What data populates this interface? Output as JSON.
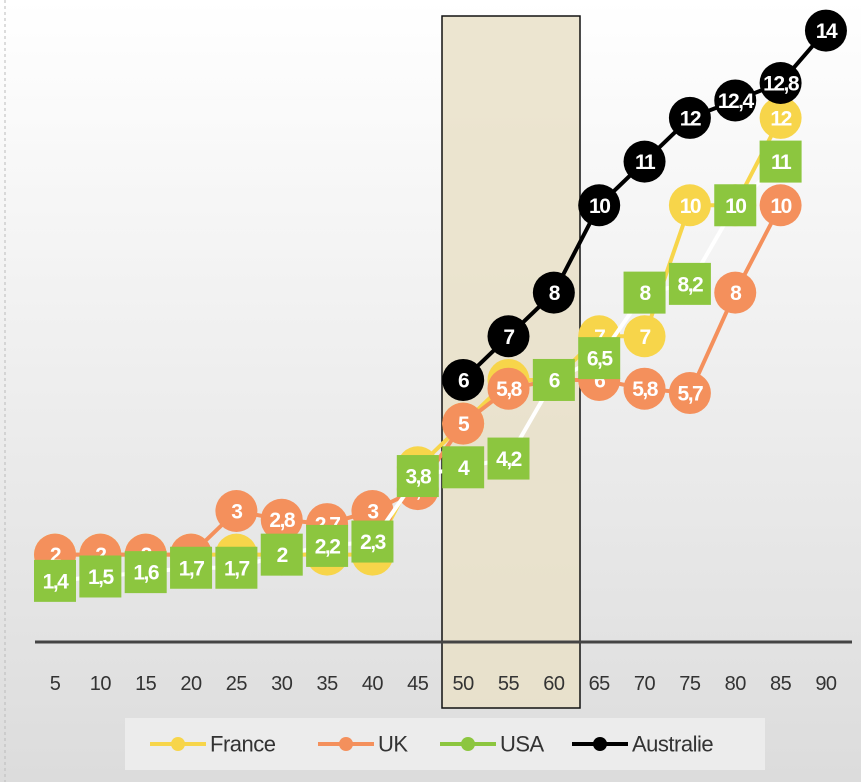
{
  "chart_data": {
    "type": "line",
    "categories": [
      "5",
      "10",
      "15",
      "20",
      "25",
      "30",
      "35",
      "40",
      "45",
      "50",
      "55",
      "60",
      "65",
      "70",
      "75",
      "80",
      "85",
      "90"
    ],
    "series": [
      {
        "name": "France",
        "color": "#f7d54a",
        "line_color": "#f7d54a",
        "marker": "circle",
        "values": [
          2,
          2,
          2,
          2,
          2,
          2,
          2,
          2,
          4,
          5,
          6,
          6,
          7,
          7,
          10,
          10,
          12,
          null
        ],
        "value_labels": [
          "2",
          "2",
          "2",
          "2",
          "2",
          "2",
          "2",
          "2",
          "4",
          "5",
          "6",
          "6",
          "7",
          "7",
          "10",
          "10",
          "12",
          null
        ]
      },
      {
        "name": "UK",
        "color": "#f4905c",
        "line_color": "#f4905c",
        "marker": "circle",
        "values": [
          2,
          2,
          2,
          2,
          3,
          2.8,
          2.7,
          3,
          3.5,
          5,
          5.8,
          6,
          6,
          5.8,
          5.7,
          8,
          10,
          null
        ],
        "value_labels": [
          "2",
          "2",
          "2",
          "2",
          "3",
          "2,8",
          "2,7",
          "3",
          "3,5",
          "5",
          "5,8",
          "6",
          "6",
          "5,8",
          "5,7",
          "8",
          "10",
          null
        ]
      },
      {
        "name": "USA",
        "color": "#8cc63f",
        "line_color": "#ffffff",
        "marker": "square",
        "values": [
          1.4,
          1.5,
          1.6,
          1.7,
          1.7,
          2,
          2.2,
          2.3,
          3.8,
          4,
          4.2,
          6,
          6.5,
          8,
          8.2,
          10,
          11,
          null
        ],
        "value_labels": [
          "1,4",
          "1,5",
          "1,6",
          "1,7",
          "1,7",
          "2",
          "2,2",
          "2,3",
          "3,8",
          "4",
          "4,2",
          "6",
          "6,5",
          "8",
          "8,2",
          "10",
          "11",
          null
        ]
      },
      {
        "name": "Australie",
        "color": "#000000",
        "line_color": "#000000",
        "marker": "circle",
        "values": [
          null,
          null,
          null,
          null,
          null,
          null,
          null,
          null,
          null,
          6,
          7,
          8,
          10,
          11,
          12,
          12.4,
          12.8,
          14
        ],
        "value_labels": [
          null,
          null,
          null,
          null,
          null,
          null,
          null,
          null,
          null,
          "6",
          "7",
          "8",
          "10",
          "11",
          "12",
          "12,4",
          "12,8",
          "14"
        ]
      }
    ],
    "ylim": [
      0,
      14.7
    ],
    "legend": "bottom",
    "grid": false
  }
}
